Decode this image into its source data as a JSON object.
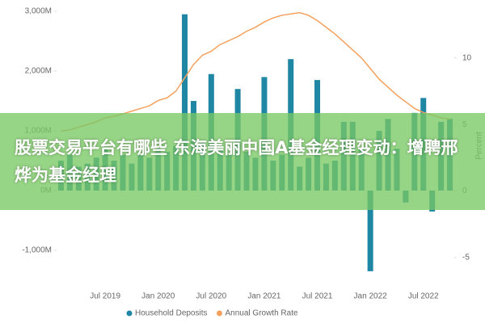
{
  "chart_data": {
    "type": "bar-line",
    "categories": [
      null,
      null,
      null,
      null,
      null,
      "Jul 2019",
      null,
      null,
      null,
      null,
      null,
      "Jan 2020",
      null,
      null,
      null,
      null,
      null,
      "Jul 2020",
      null,
      null,
      null,
      null,
      null,
      "Jan 2021",
      null,
      null,
      null,
      null,
      null,
      "Jul 2021",
      null,
      null,
      null,
      null,
      null,
      "Jan 2022",
      null,
      null,
      null,
      null,
      null,
      "Jul 2022",
      null,
      null,
      null
    ],
    "series": [
      {
        "name": "Household Deposits",
        "type": "bar",
        "color": "#1f86a3",
        "values": [
          500,
          600,
          400,
          450,
          550,
          700,
          500,
          600,
          450,
          600,
          550,
          700,
          650,
          750,
          2950,
          1500,
          800,
          1950,
          700,
          600,
          1700,
          650,
          550,
          1900,
          500,
          600,
          2200,
          400,
          550,
          1850,
          450,
          500,
          1150,
          1150,
          700,
          -1350,
          1000,
          1200,
          700,
          -200,
          1300,
          1550,
          -350,
          1150,
          1200
        ]
      },
      {
        "name": "Annual Growth Rate",
        "type": "line",
        "axis": "y2",
        "color": "#f5a15e",
        "values": [
          4.5,
          4.6,
          4.8,
          5,
          5.2,
          5.5,
          5.6,
          5.8,
          6,
          6.2,
          6.4,
          6.8,
          7,
          7.5,
          8.5,
          9.5,
          10.2,
          10.5,
          11,
          11.3,
          11.6,
          12,
          12.3,
          12.7,
          13,
          13.2,
          13.3,
          13.4,
          13.2,
          12.8,
          12.3,
          11.8,
          11.2,
          10.6,
          10,
          9.2,
          8.4,
          7.8,
          7.2,
          6.7,
          6.2,
          5.9,
          5.7,
          5.5,
          5.4
        ]
      }
    ],
    "ylim": [
      -1500,
      3000
    ],
    "yticks": [
      {
        "value": 3000,
        "label": "3,000M"
      },
      {
        "value": 2000,
        "label": "2,000M"
      },
      {
        "value": 1000,
        "label": "1,000M"
      },
      {
        "value": 0,
        "label": "0M"
      },
      {
        "value": -1000,
        "label": "-1,000M"
      }
    ],
    "y2lim": [
      -6.7,
      13.5
    ],
    "y2ticks": [
      10,
      5,
      0,
      -5
    ],
    "y2label": "Percent"
  },
  "banner": "股票交易平台有哪些 东海美丽中国A基金经理变动：增聘邢烨为基金经理"
}
